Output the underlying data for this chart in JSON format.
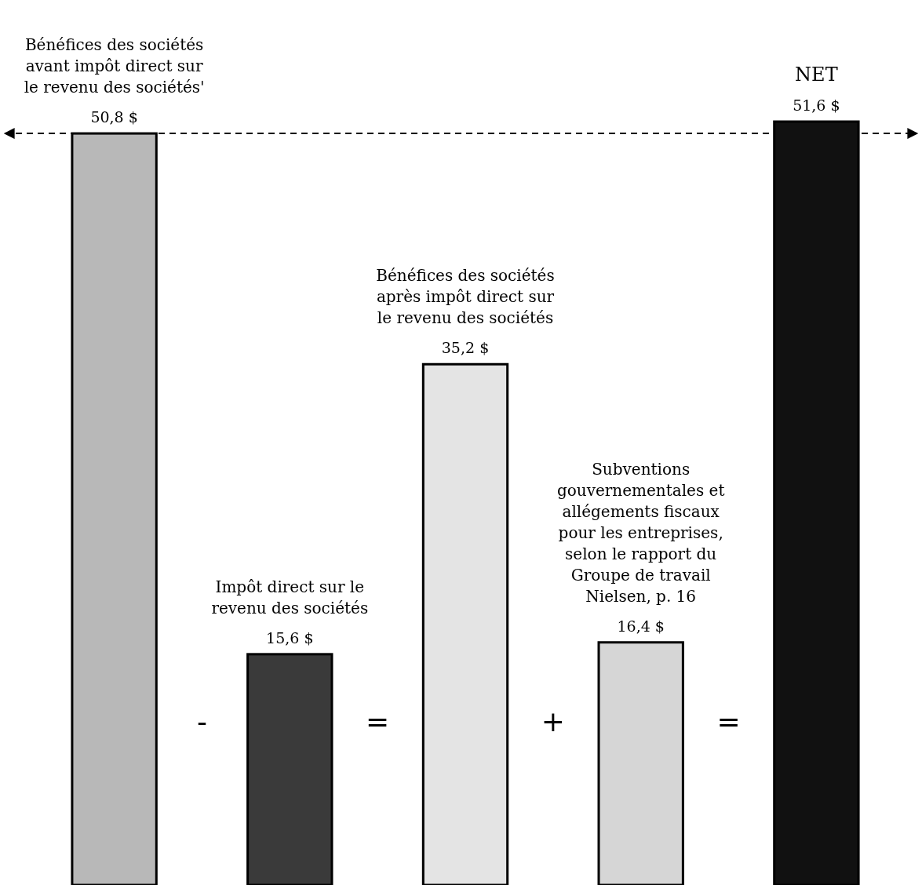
{
  "chart_data": {
    "type": "bar",
    "categories": [
      null,
      null,
      null,
      null,
      null
    ],
    "values": [
      50.8,
      15.6,
      35.2,
      16.4,
      51.6
    ],
    "colors": [
      "#b8b8b8",
      "#3a3a3a",
      "#e4e4e4",
      "#d6d6d6",
      "#111111"
    ],
    "value_labels": [
      "50,8 $",
      "15,6 $",
      "35,2 $",
      "16,4 $",
      "51,6 $"
    ],
    "ref_lines": [
      {
        "axis": "y",
        "value": 50.8,
        "line_style": "dashed",
        "color": "#000000"
      }
    ],
    "annotations": [
      "Bénéfices des sociétés avant impôt direct sur le revenu des sociétés'",
      "Impôt direct sur le revenu des sociétés",
      "Bénéfices des sociétés après impôt direct sur le revenu des sociétés",
      "Subventions gouvernementales et allégements fiscaux pour les entreprises, selon le rapport du Groupe de travail Nielsen, p. 16",
      "NET",
      "-",
      "=",
      "+",
      "="
    ]
  }
}
